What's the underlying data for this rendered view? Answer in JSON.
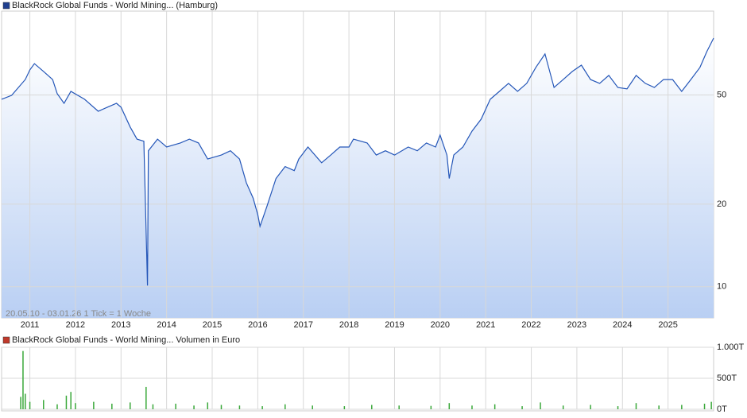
{
  "chart_data": [
    {
      "type": "line",
      "title": "BlackRock Global Funds - World Mining... (Hamburg)",
      "legend_color": "#1f3f8f",
      "annotation": "20.05.10 - 03.01.26   1 Tick = 1 Woche",
      "log_scale": true,
      "grid": true,
      "x": [
        2010.38,
        2010.6,
        2010.9,
        2011.0,
        2011.1,
        2011.3,
        2011.5,
        2011.6,
        2011.75,
        2011.9,
        2012.2,
        2012.5,
        2012.7,
        2012.9,
        2013.0,
        2013.2,
        2013.35,
        2013.5,
        2013.58,
        2013.6,
        2013.8,
        2014.0,
        2014.3,
        2014.5,
        2014.7,
        2014.9,
        2015.2,
        2015.4,
        2015.6,
        2015.75,
        2015.9,
        2016.0,
        2016.05,
        2016.2,
        2016.4,
        2016.6,
        2016.8,
        2016.9,
        2017.1,
        2017.4,
        2017.6,
        2017.8,
        2018.0,
        2018.1,
        2018.4,
        2018.6,
        2018.8,
        2019.0,
        2019.3,
        2019.5,
        2019.7,
        2019.9,
        2020.0,
        2020.15,
        2020.2,
        2020.3,
        2020.5,
        2020.7,
        2020.9,
        2021.1,
        2021.3,
        2021.5,
        2021.7,
        2021.9,
        2022.1,
        2022.3,
        2022.5,
        2022.7,
        2022.9,
        2023.1,
        2023.3,
        2023.5,
        2023.7,
        2023.9,
        2024.1,
        2024.3,
        2024.5,
        2024.7,
        2024.9,
        2025.1,
        2025.3,
        2025.5,
        2025.7,
        2025.85,
        2026.0
      ],
      "series": [
        {
          "name": "BlackRock Global Funds - World Mining... (Hamburg)",
          "color": "#2456b8",
          "values": [
            48.2,
            49.8,
            56.9,
            61.7,
            65,
            60.9,
            56.9,
            50.5,
            46.6,
            51.5,
            48.2,
            43.6,
            45.1,
            46.6,
            45.1,
            38.2,
            34.5,
            33.9,
            10.1,
            31.3,
            34.5,
            32.3,
            33.4,
            34.5,
            33.4,
            29.2,
            30.2,
            31.3,
            29.2,
            23.9,
            21,
            18.3,
            16.6,
            19.6,
            24.8,
            27.4,
            26.5,
            29.2,
            32.3,
            28.3,
            30.2,
            32.3,
            32.3,
            34.5,
            33.4,
            30.2,
            31.3,
            30.2,
            32.3,
            31.3,
            33.4,
            32.3,
            35.7,
            30.2,
            24.8,
            30.2,
            32.3,
            36.9,
            40.8,
            48.2,
            51.5,
            55.1,
            51.5,
            55.1,
            63,
            70.5,
            53.2,
            56.9,
            60.9,
            64.2,
            56.9,
            55.1,
            58.9,
            53.2,
            52.6,
            58.9,
            55.1,
            53.2,
            56.9,
            56.9,
            51.5,
            56.9,
            63,
            71.9,
            80.5
          ]
        }
      ],
      "xlim": [
        2010.38,
        2026.0
      ],
      "xticks": [
        2011,
        2012,
        2013,
        2014,
        2015,
        2016,
        2017,
        2018,
        2019,
        2020,
        2021,
        2022,
        2023,
        2024,
        2025
      ],
      "ylim": [
        7.7,
        101
      ],
      "yticks": [
        10,
        20,
        50
      ]
    },
    {
      "type": "bar",
      "title": "BlackRock Global Funds - World Mining... Volumen in Euro",
      "legend_color": "#c0392b",
      "x": [
        2010.8,
        2010.85,
        2010.9,
        2011.0,
        2011.3,
        2011.6,
        2011.8,
        2011.9,
        2012.0,
        2012.4,
        2012.8,
        2013.2,
        2013.55,
        2013.7,
        2014.2,
        2014.6,
        2014.9,
        2015.2,
        2015.6,
        2016.1,
        2016.6,
        2017.2,
        2017.9,
        2018.5,
        2019.1,
        2019.8,
        2020.2,
        2020.7,
        2021.2,
        2021.8,
        2022.2,
        2022.7,
        2023.3,
        2023.9,
        2024.3,
        2024.8,
        2025.3,
        2025.8,
        2025.95
      ],
      "series": [
        {
          "name": "Volumen",
          "color": "#3aa83a",
          "values": [
            200,
            940,
            250,
            120,
            150,
            80,
            220,
            280,
            100,
            120,
            90,
            110,
            360,
            80,
            90,
            60,
            110,
            70,
            60,
            50,
            80,
            60,
            50,
            70,
            60,
            55,
            100,
            60,
            80,
            50,
            110,
            60,
            70,
            50,
            100,
            60,
            70,
            90,
            120
          ]
        }
      ],
      "xlim": [
        2010.38,
        2026.0
      ],
      "ylim": [
        0,
        1000
      ],
      "yticks": [
        {
          "value": 0,
          "label": "0T"
        },
        {
          "value": 500,
          "label": "500T"
        },
        {
          "value": 1000,
          "label": "1.000T"
        }
      ]
    }
  ]
}
